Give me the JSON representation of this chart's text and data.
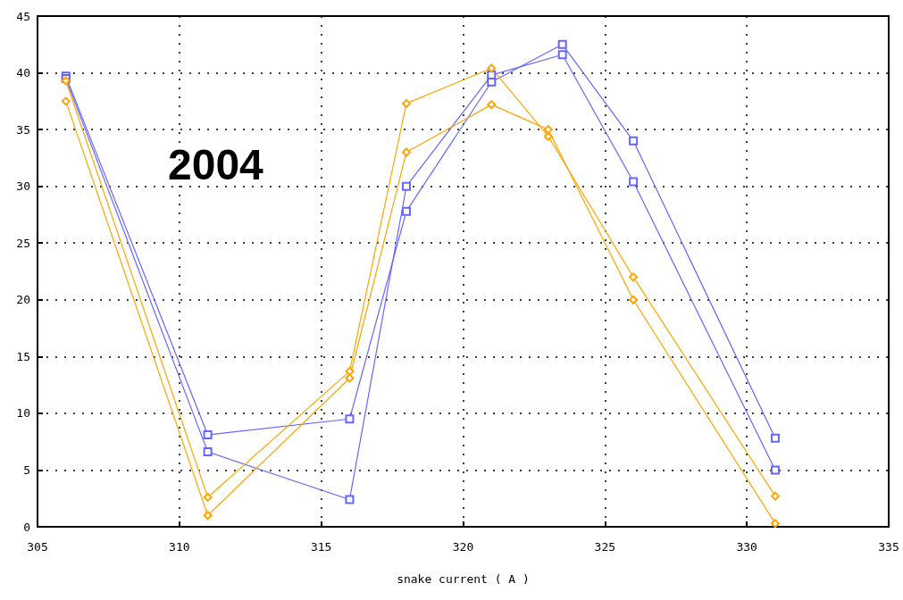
{
  "chart_data": {
    "type": "line",
    "xlabel": "snake current ( A )",
    "annotations": [
      "2004"
    ],
    "xlim": [
      305,
      335
    ],
    "xticks": [
      305,
      310,
      315,
      320,
      325,
      330,
      335
    ],
    "ylim": [
      0,
      45
    ],
    "yticks": [
      0,
      5,
      10,
      15,
      20,
      25,
      30,
      35,
      40,
      45
    ],
    "grid": true,
    "line_style": "solid",
    "series": [
      {
        "color": "#6666ff",
        "marker": "square",
        "x": [
          306,
          311,
          316,
          318,
          321,
          323.5,
          326,
          331
        ],
        "values": [
          39.7,
          8.1,
          9.5,
          27.8,
          39.2,
          42.5,
          34,
          7.8
        ]
      },
      {
        "color": "#6666ff",
        "marker": "square",
        "x": [
          306,
          311,
          316,
          318,
          321,
          323.5,
          326,
          331
        ],
        "values": [
          39.5,
          6.6,
          2.4,
          30,
          39.8,
          41.6,
          30.4,
          5.0
        ]
      },
      {
        "color": "#ffa500",
        "marker": "diamond",
        "x": [
          306,
          311,
          316,
          318,
          321,
          323,
          326,
          331
        ],
        "values": [
          39.3,
          2.6,
          13.7,
          37.3,
          40.4,
          34.4,
          22,
          2.7
        ]
      },
      {
        "color": "#ffa500",
        "marker": "diamond",
        "x": [
          306,
          311,
          316,
          318,
          321,
          323,
          326,
          331
        ],
        "values": [
          37.5,
          1.0,
          13.1,
          33,
          37.2,
          35,
          20,
          0.3
        ]
      }
    ]
  }
}
